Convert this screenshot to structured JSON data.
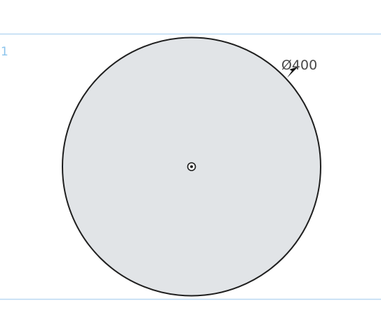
{
  "sketch": {
    "row_label": "1",
    "diameter_dimension": "Ø400",
    "circle_center_marker": "center-point",
    "colors": {
      "guide_line": "#b9d8f2",
      "row_label": "#8cc4ec",
      "circle_fill": "#e1e4e7",
      "circle_stroke": "#1f1f1f",
      "dimension_text": "#4a4a4a",
      "arrow": "#111111"
    }
  }
}
